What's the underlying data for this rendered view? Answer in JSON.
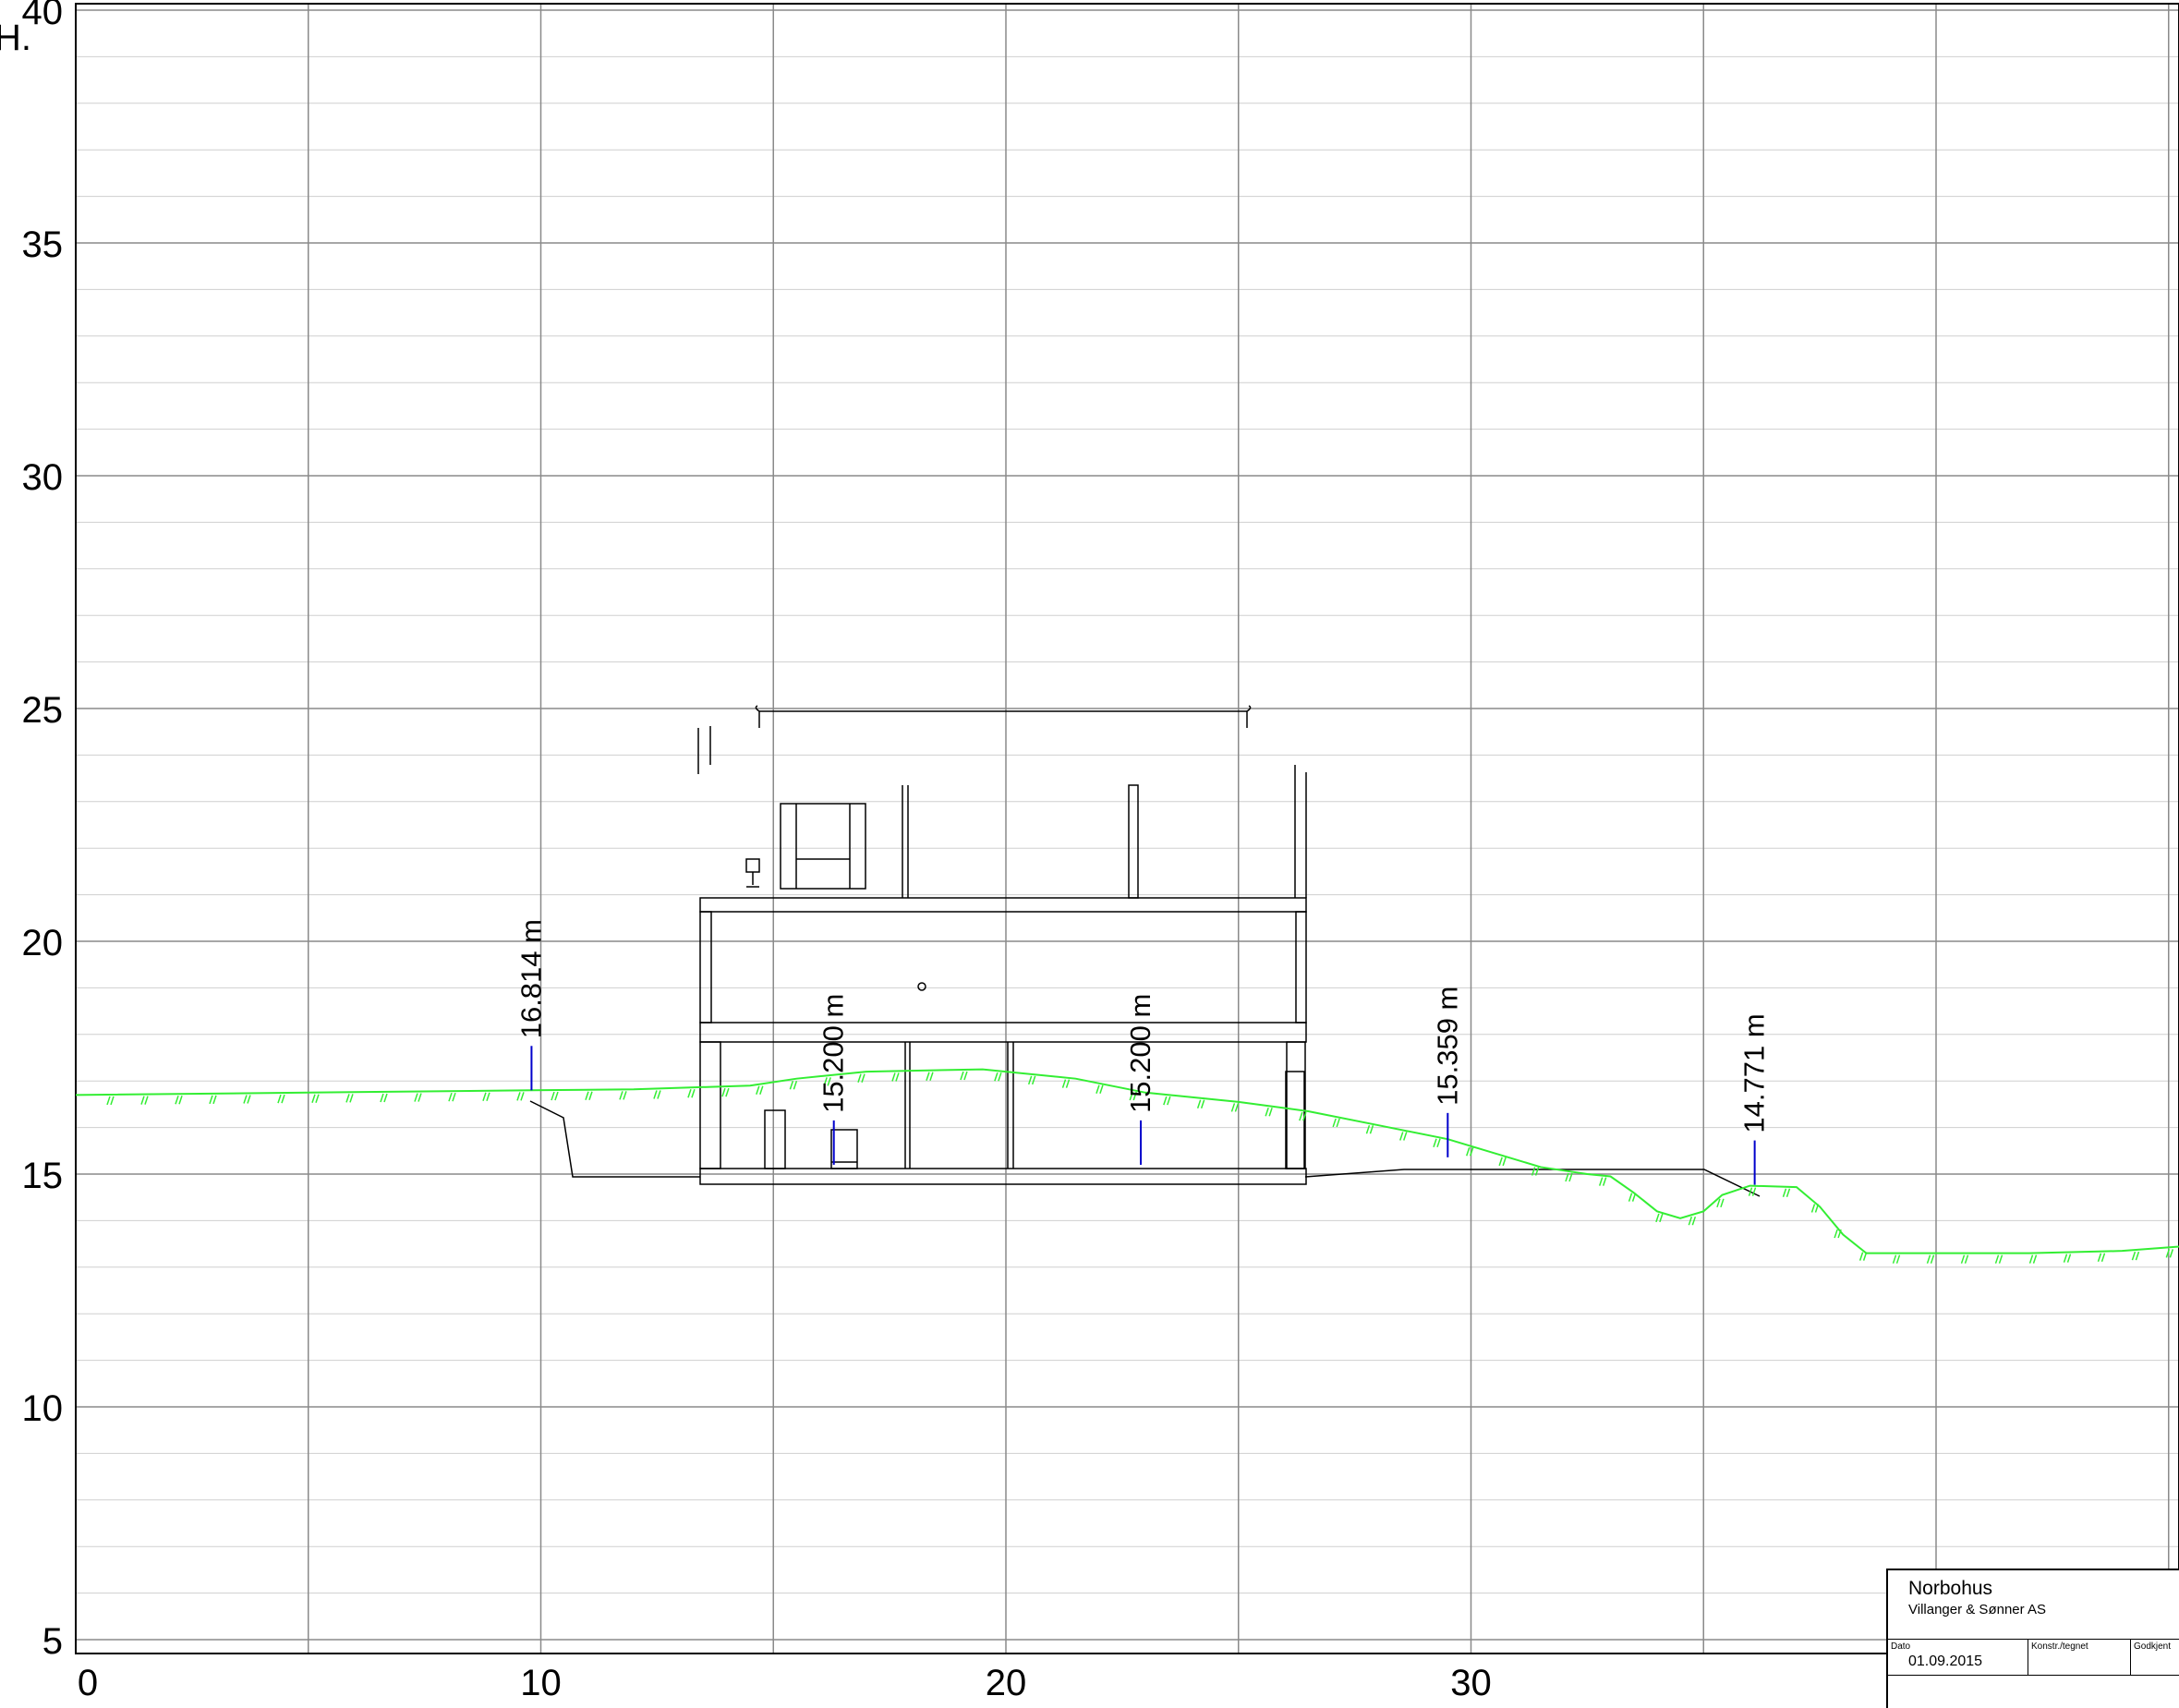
{
  "drawing": {
    "axis_title": "H.",
    "y_axis": {
      "min": 5,
      "max": 40,
      "labels": [
        "40",
        "35",
        "30",
        "25",
        "20",
        "15",
        "10",
        "5"
      ]
    },
    "x_axis": {
      "min": 0,
      "max": 47,
      "labels": [
        "0",
        "10",
        "20",
        "30"
      ]
    },
    "grid": {
      "major": 5,
      "minor": 1,
      "major_color": "#8a8a8a",
      "minor_color": "#cfcfcf"
    },
    "terrain_color": "#33ee33",
    "marker_color": "#0000cc",
    "terrain_profile": [
      [
        0,
        16.7
      ],
      [
        5,
        16.75
      ],
      [
        9.8,
        16.8
      ],
      [
        12,
        16.82
      ],
      [
        14.5,
        16.9
      ],
      [
        15.5,
        17.05
      ],
      [
        17,
        17.2
      ],
      [
        19.5,
        17.25
      ],
      [
        21.5,
        17.05
      ],
      [
        23,
        16.75
      ],
      [
        25,
        16.55
      ],
      [
        26.5,
        16.35
      ],
      [
        28,
        16.05
      ],
      [
        29.5,
        15.75
      ],
      [
        30.5,
        15.45
      ],
      [
        31.5,
        15.15
      ],
      [
        32.5,
        15.0
      ],
      [
        33,
        14.95
      ],
      [
        33.5,
        14.6
      ],
      [
        34,
        14.2
      ],
      [
        34.5,
        14.05
      ],
      [
        35,
        14.2
      ],
      [
        35.4,
        14.55
      ],
      [
        36,
        14.75
      ],
      [
        37,
        14.72
      ],
      [
        37.5,
        14.3
      ],
      [
        38,
        13.7
      ],
      [
        38.5,
        13.3
      ],
      [
        40,
        13.3
      ],
      [
        42,
        13.3
      ],
      [
        44,
        13.35
      ],
      [
        46,
        13.5
      ],
      [
        47,
        13.65
      ]
    ],
    "levels": [
      {
        "x": 9.8,
        "ground": 16.8,
        "label": "16.814 m"
      },
      {
        "x": 16.3,
        "ground": 15.2,
        "label": "15.200 m"
      },
      {
        "x": 22.9,
        "ground": 15.2,
        "label": "15.200 m"
      },
      {
        "x": 29.5,
        "ground": 15.36,
        "label": "15.359 m"
      },
      {
        "x": 36.1,
        "ground": 14.77,
        "label": "14.771 m"
      }
    ]
  },
  "title_block": {
    "company": "Norbohus",
    "subtitle": "Villanger & Sønner AS",
    "date_label": "Dato",
    "date_value": "01.09.2015",
    "drawn_label": "Konstr./tegnet",
    "approved_label": "Godkjent"
  }
}
